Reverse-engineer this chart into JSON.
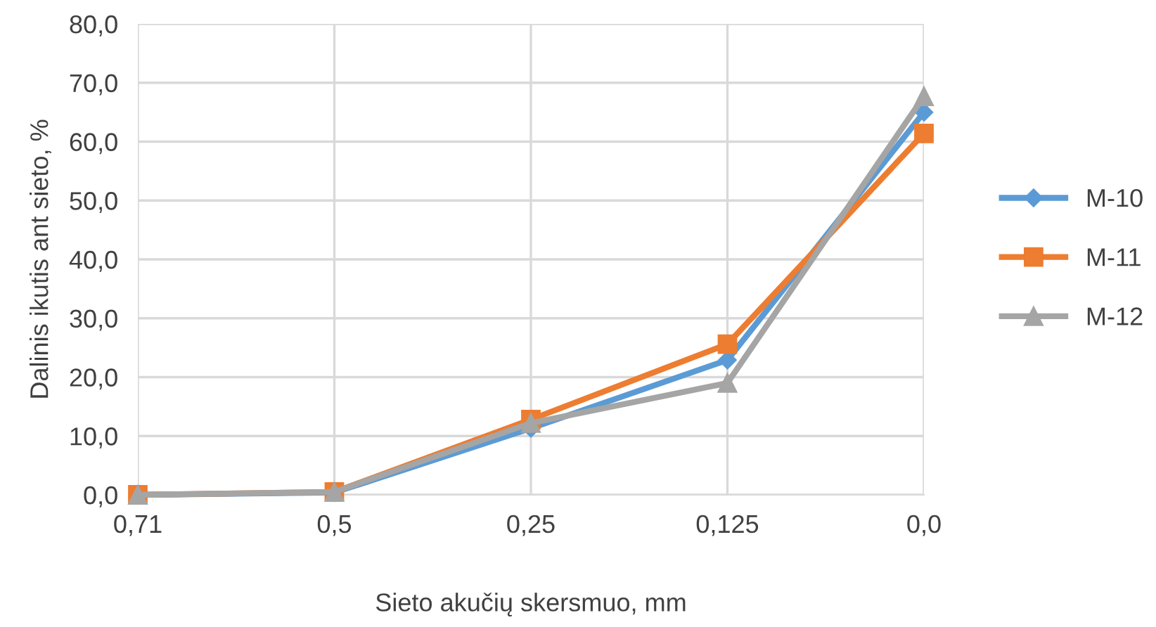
{
  "chart_data": {
    "type": "line",
    "xlabel": "Sieto akučių skersmuo, mm",
    "ylabel": "Dalinis ikutis ant sieto, %",
    "categories": [
      "0,71",
      "0,5",
      "0,25",
      "0,125",
      "0,0"
    ],
    "series": [
      {
        "name": "M-10",
        "color": "#5b9bd5",
        "marker": "diamond",
        "values": [
          0.0,
          0.4,
          11.3,
          22.9,
          65.0
        ]
      },
      {
        "name": "M-11",
        "color": "#ed7d31",
        "marker": "square",
        "values": [
          0.0,
          0.5,
          12.8,
          25.6,
          61.4
        ]
      },
      {
        "name": "M-12",
        "color": "#a5a5a5",
        "marker": "triangle",
        "values": [
          0.0,
          0.5,
          12.2,
          19.0,
          67.7
        ]
      }
    ],
    "ylim": [
      0,
      80
    ],
    "yticks": [
      {
        "value": 0,
        "label": "0,0"
      },
      {
        "value": 10,
        "label": "10,0"
      },
      {
        "value": 20,
        "label": "20,0"
      },
      {
        "value": 30,
        "label": "30,0"
      },
      {
        "value": 40,
        "label": "40,0"
      },
      {
        "value": 50,
        "label": "50,0"
      },
      {
        "value": 60,
        "label": "60,0"
      },
      {
        "value": 70,
        "label": "70,0"
      },
      {
        "value": 80,
        "label": "80,0"
      }
    ],
    "grid": true,
    "legend": "right"
  }
}
